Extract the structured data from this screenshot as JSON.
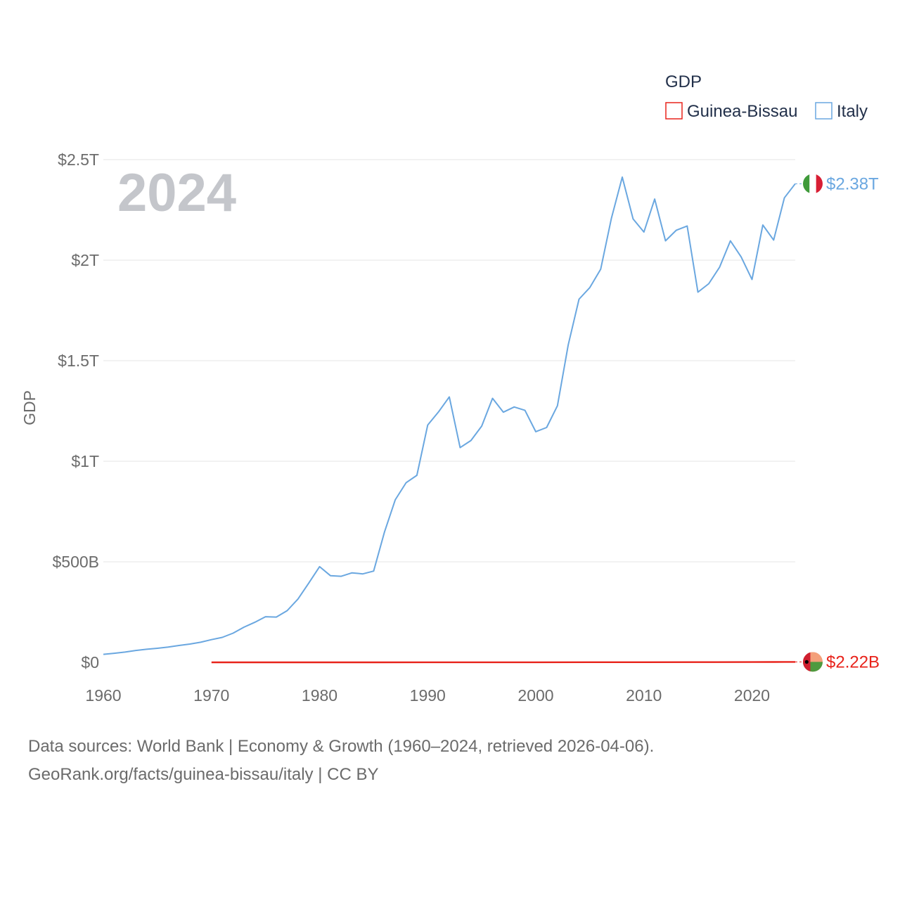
{
  "chart_data": {
    "type": "line",
    "title": "",
    "year_label": "2024",
    "xlabel": "",
    "ylabel": "GDP",
    "xlim": [
      1960,
      2024
    ],
    "ylim": [
      0,
      2500000000000
    ],
    "x_ticks": [
      1960,
      1970,
      1980,
      1990,
      2000,
      2010,
      2020
    ],
    "x_tick_labels": [
      "1960",
      "1970",
      "1980",
      "1990",
      "2000",
      "2010",
      "2020"
    ],
    "y_ticks": [
      0,
      500000000000,
      1000000000000,
      1500000000000,
      2000000000000,
      2500000000000
    ],
    "y_tick_labels": [
      "$0",
      "$500B",
      "$1T",
      "$1.5T",
      "$2T",
      "$2.5T"
    ],
    "grid": true,
    "legend": {
      "title": "GDP",
      "position": "top-right",
      "items": [
        "Guinea-Bissau",
        "Italy"
      ]
    },
    "series": [
      {
        "name": "Italy",
        "color": "#6aa7e0",
        "end_label": "$2.38T",
        "x": [
          1960,
          1961,
          1962,
          1963,
          1964,
          1965,
          1966,
          1967,
          1968,
          1969,
          1970,
          1971,
          1972,
          1973,
          1974,
          1975,
          1976,
          1977,
          1978,
          1979,
          1980,
          1981,
          1982,
          1983,
          1984,
          1985,
          1986,
          1987,
          1988,
          1989,
          1990,
          1991,
          1992,
          1993,
          1994,
          1995,
          1996,
          1997,
          1998,
          1999,
          2000,
          2001,
          2002,
          2003,
          2004,
          2005,
          2006,
          2007,
          2008,
          2009,
          2010,
          2011,
          2012,
          2013,
          2014,
          2015,
          2016,
          2017,
          2018,
          2019,
          2020,
          2021,
          2022,
          2023,
          2024
        ],
        "values": [
          40000000000.0,
          45000000000.0,
          51000000000.0,
          59000000000.0,
          65000000000.0,
          70000000000.0,
          76000000000.0,
          84000000000.0,
          91000000000.0,
          100000000000.0,
          113000000000.0,
          124000000000.0,
          145000000000.0,
          175000000000.0,
          199000000000.0,
          227000000000.0,
          225000000000.0,
          257000000000.0,
          315000000000.0,
          394000000000.0,
          476000000000.0,
          431000000000.0,
          428000000000.0,
          445000000000.0,
          440000000000.0,
          454000000000.0,
          648000000000.0,
          808000000000.0,
          893000000000.0,
          930000000000.0,
          1180000000000.0,
          1245000000000.0,
          1320000000000.0,
          1068000000000.0,
          1103000000000.0,
          1175000000000.0,
          1313000000000.0,
          1244000000000.0,
          1270000000000.0,
          1253000000000.0,
          1147000000000.0,
          1168000000000.0,
          1276000000000.0,
          1578000000000.0,
          1806000000000.0,
          1864000000000.0,
          1955000000000.0,
          2209000000000.0,
          2413000000000.0,
          2205000000000.0,
          2140000000000.0,
          2304000000000.0,
          2096000000000.0,
          2149000000000.0,
          2170000000000.0,
          1841000000000.0,
          1883000000000.0,
          1965000000000.0,
          2096000000000.0,
          2016000000000.0,
          1904000000000.0,
          2175000000000.0,
          2100000000000.0,
          2310000000000.0,
          2380000000000.0
        ]
      },
      {
        "name": "Guinea-Bissau",
        "color": "#e8231b",
        "end_label": "$2.22B",
        "x": [
          1970,
          1975,
          1980,
          1985,
          1990,
          1995,
          2000,
          2005,
          2010,
          2015,
          2020,
          2022,
          2023,
          2024
        ],
        "values": [
          80000000.0,
          140000000.0,
          110000000.0,
          170000000.0,
          240000000.0,
          260000000.0,
          370000000.0,
          580000000.0,
          850000000.0,
          1050000000.0,
          1430000000.0,
          1630000000.0,
          1980000000.0,
          2220000000.0
        ]
      }
    ]
  },
  "footer": {
    "line1": "Data sources: World Bank | Economy & Growth (1960–2024, retrieved 2026-04-06).",
    "line2": "GeoRank.org/facts/guinea-bissau/italy | CC BY"
  },
  "colors": {
    "grid": "#e6e6e6",
    "italy_flag": [
      "#3f9a3a",
      "#ffffff",
      "#d81e34"
    ],
    "gb_flag": [
      "#cf1f2f",
      "#f4a07a",
      "#4e9a3f",
      "#000000"
    ]
  }
}
